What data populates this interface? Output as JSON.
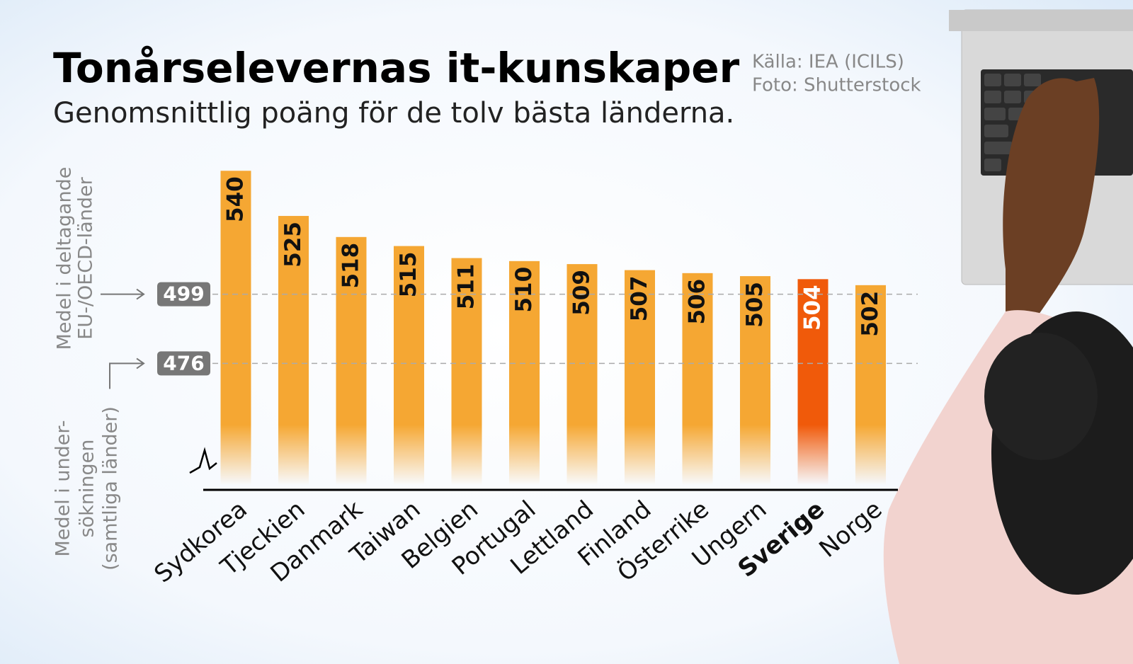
{
  "chart_data": {
    "type": "bar",
    "title": "Tonårselevernas it-kunskaper",
    "subtitle": "Genomsnittlig poäng för de tolv bästa länderna.",
    "source": "Källa: IEA (ICILS)",
    "photo_credit": "Foto: Shutterstock",
    "categories": [
      "Sydkorea",
      "Tjeckien",
      "Danmark",
      "Taiwan",
      "Belgien",
      "Portugal",
      "Lettland",
      "Finland",
      "Österrike",
      "Ungern",
      "Sverige",
      "Norge"
    ],
    "values": [
      540,
      525,
      518,
      515,
      511,
      510,
      509,
      507,
      506,
      505,
      504,
      502
    ],
    "color": "#f5a733",
    "highlight": {
      "index": 10,
      "color": "#f05a0a"
    },
    "ylim": [
      434,
      545
    ],
    "axis_break": true,
    "reference_lines": [
      {
        "value": 499,
        "label_lines": [
          "Medel i deltagande",
          "EU-/OECD-länder"
        ]
      },
      {
        "value": 476,
        "label_lines": [
          "Medel i under-",
          "sökningen",
          "(samtliga länder)"
        ]
      }
    ]
  }
}
